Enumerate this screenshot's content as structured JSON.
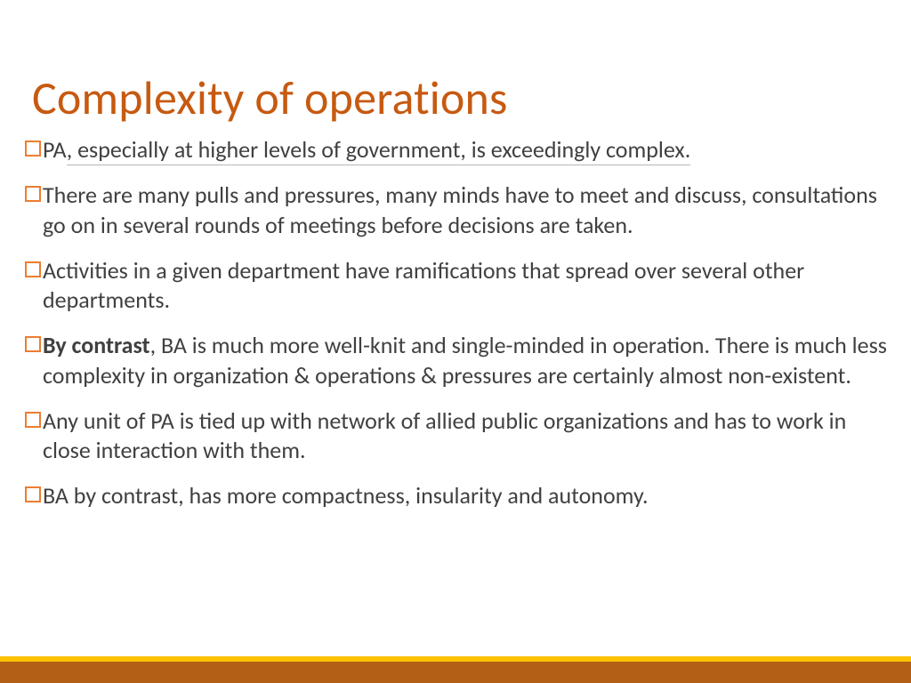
{
  "colors": {
    "title": "#c65a11",
    "bullet_border": "#ed7d31",
    "body_text": "#404040",
    "footer_top": "#ffc000",
    "footer_main": "#b45f16",
    "pa_underline": "#b7b7b7"
  },
  "title": "Complexity of operations",
  "bullets": [
    {
      "prefix": "PA",
      "prefix_underlined": false,
      "rest": ", especially at higher levels of government, is exceedingly complex.",
      "rest_underlined": true
    },
    {
      "text": "There are many pulls and pressures, many minds have to meet and discuss, consultations go on in several rounds of meetings before decisions are taken."
    },
    {
      "text": "Activities in a given department have ramifications that spread over several other departments."
    },
    {
      "bold_prefix": "By contrast",
      "rest": ", BA is much more well-knit and single-minded in operation. There is much less complexity in organization & operations & pressures are certainly almost non-existent."
    },
    {
      "text": "Any unit of PA is tied up with network of allied public organizations and has to work in close interaction with them."
    },
    {
      "text": "BA by contrast, has more compactness, insularity and autonomy."
    }
  ]
}
